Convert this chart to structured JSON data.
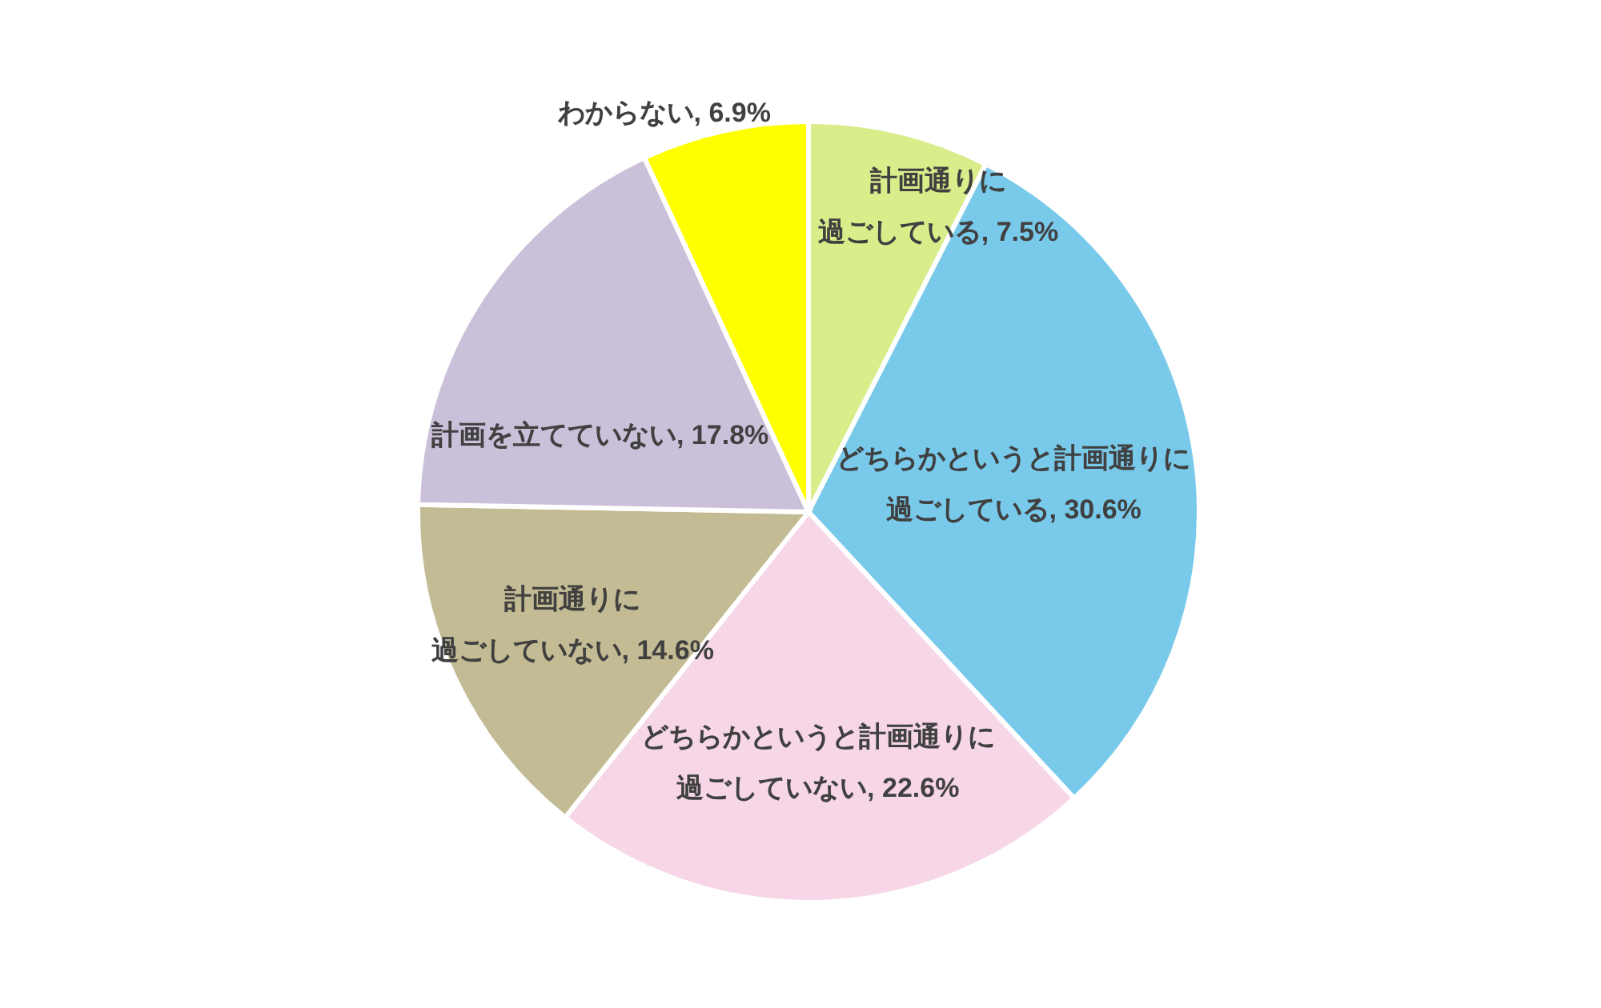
{
  "chart_data": {
    "type": "pie",
    "categories": [
      "計画通りに過ごしている",
      "どちらかというと計画通りに過ごしている",
      "どちらかというと計画通りに過ごしていない",
      "計画通りに過ごしていない",
      "計画を立てていない",
      "わからない"
    ],
    "values": [
      7.5,
      30.6,
      22.6,
      14.6,
      17.8,
      6.9
    ],
    "colors": [
      "#d9ed8b",
      "#78c9ea",
      "#f7d7e7",
      "#c3bb93",
      "#cbc0da",
      "#ffff00"
    ],
    "value_labels": [
      "7.5%",
      "30.6%",
      "22.6%",
      "14.6%",
      "17.8%",
      "6.9%"
    ]
  }
}
